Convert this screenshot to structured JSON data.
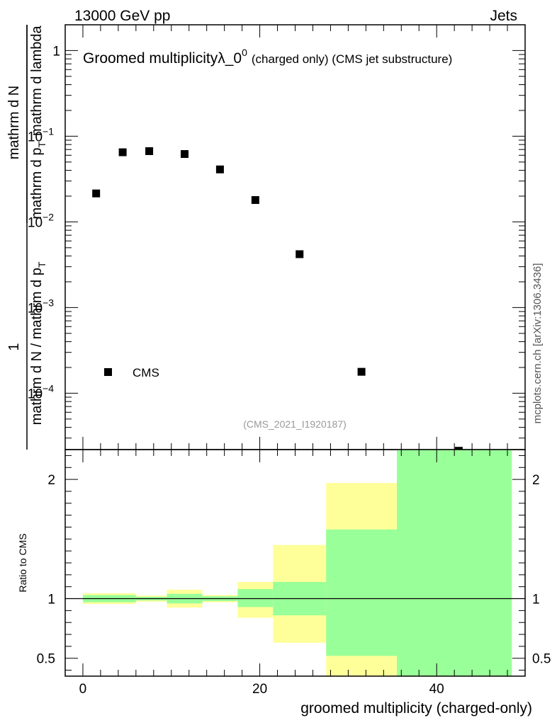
{
  "header": {
    "energy_label": "13000 GeV pp",
    "category_label": "Jets"
  },
  "chart_data": [
    {
      "type": "scatter",
      "panel": "main",
      "title_main": "Groomed multiplicityλ_0",
      "title_sup": "0",
      "title_detail": "(charged only) (CMS jet substructure)",
      "ylabel_parts": [
        "1",
        "mathrm d N / mathrm d p",
        "T",
        "mathrm d N",
        "mathrm d p",
        "T",
        "mathrm d lambda"
      ],
      "yscale": "log",
      "ylim": [
        2.2e-05,
        2.0
      ],
      "xlim": [
        -2,
        50
      ],
      "y_ticks": [
        {
          "value": 1.0,
          "base": "1",
          "exp": ""
        },
        {
          "value": 0.1,
          "base": "10",
          "exp": "−1"
        },
        {
          "value": 0.01,
          "base": "10",
          "exp": "−2"
        },
        {
          "value": 0.001,
          "base": "10",
          "exp": "−3"
        },
        {
          "value": 0.0001,
          "base": "10",
          "exp": "−4"
        }
      ],
      "series": [
        {
          "name": "CMS",
          "marker": "square",
          "x": [
            1.5,
            4.5,
            7.5,
            11.5,
            15.5,
            19.5,
            24.5,
            31.5,
            42.5
          ],
          "y": [
            0.0215,
            0.065,
            0.067,
            0.062,
            0.041,
            0.018,
            0.0042,
            0.000178,
            2.13e-05
          ]
        }
      ],
      "legend_location": "lower-left",
      "analysis_id": "(CMS_2021_I1920187)"
    },
    {
      "type": "area",
      "panel": "ratio",
      "ylabel": "Ratio to CMS",
      "xlabel": "groomed multiplicity (charged-only)",
      "xlim": [
        -2,
        50
      ],
      "ylim": [
        0.35,
        2.25
      ],
      "x_ticks": [
        0,
        20,
        40
      ],
      "y_ticks": [
        0.5,
        1,
        2
      ],
      "reference_line": 1.0,
      "bins": [
        {
          "x_low": 0,
          "x_high": 6,
          "stat_low": 0.97,
          "stat_high": 1.03,
          "total_low": 0.955,
          "total_high": 1.045
        },
        {
          "x_low": 6,
          "x_high": 9.5,
          "stat_low": 0.985,
          "stat_high": 1.015,
          "total_low": 0.975,
          "total_high": 1.025
        },
        {
          "x_low": 9.5,
          "x_high": 13.5,
          "stat_low": 0.96,
          "stat_high": 1.04,
          "total_low": 0.925,
          "total_high": 1.075
        },
        {
          "x_low": 13.5,
          "x_high": 17.5,
          "stat_low": 0.98,
          "stat_high": 1.02,
          "total_low": 0.97,
          "total_high": 1.03
        },
        {
          "x_low": 17.5,
          "x_high": 21.5,
          "stat_low": 0.93,
          "stat_high": 1.08,
          "total_low": 0.84,
          "total_high": 1.14
        },
        {
          "x_low": 21.5,
          "x_high": 27.5,
          "stat_low": 0.86,
          "stat_high": 1.14,
          "total_low": 0.63,
          "total_high": 1.45
        },
        {
          "x_low": 27.5,
          "x_high": 35.5,
          "stat_low": 0.52,
          "stat_high": 1.58,
          "total_low": 0.35,
          "total_high": 1.97
        },
        {
          "x_low": 35.5,
          "x_high": 48.5,
          "stat_low": 0.35,
          "stat_high": 2.25,
          "total_low": 0.35,
          "total_high": 2.25
        }
      ],
      "band_colors": {
        "stat": "#99ff99",
        "total": "#ffff99"
      }
    }
  ],
  "watermark": "mcplots.cern.ch [arXiv:1306.3436]"
}
